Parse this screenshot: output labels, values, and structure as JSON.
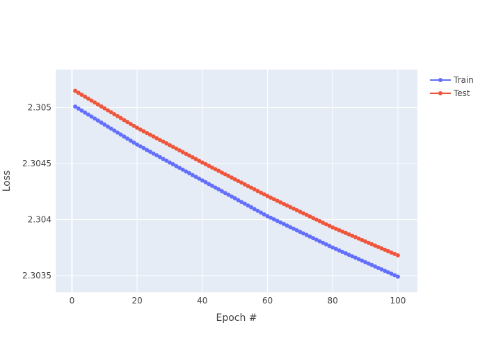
{
  "chart_data": {
    "type": "line",
    "xlabel": "Epoch #",
    "ylabel": "Loss",
    "xlim": [
      -5,
      106
    ],
    "ylim": [
      2.30335,
      2.30534
    ],
    "x_ticks": [
      0,
      20,
      40,
      60,
      80,
      100
    ],
    "x_tick_labels": [
      "0",
      "20",
      "40",
      "60",
      "80",
      "100"
    ],
    "y_ticks": [
      2.3035,
      2.304,
      2.3045,
      2.305
    ],
    "y_tick_labels": [
      "2.3035",
      "2.304",
      "2.3045",
      "2.305"
    ],
    "grid": true,
    "legend_position": "top-right",
    "x_start": 1,
    "x_end": 100,
    "series": [
      {
        "name": "Train",
        "color": "#636efa",
        "x": [
          1,
          20,
          40,
          60,
          80,
          100
        ],
        "values": [
          2.30501,
          2.30467,
          2.30435,
          2.30403,
          2.30375,
          2.30349
        ]
      },
      {
        "name": "Test",
        "color": "#ef553b",
        "x": [
          1,
          20,
          40,
          60,
          80,
          100
        ],
        "values": [
          2.30515,
          2.30482,
          2.30451,
          2.30421,
          2.30393,
          2.30368
        ]
      }
    ]
  }
}
